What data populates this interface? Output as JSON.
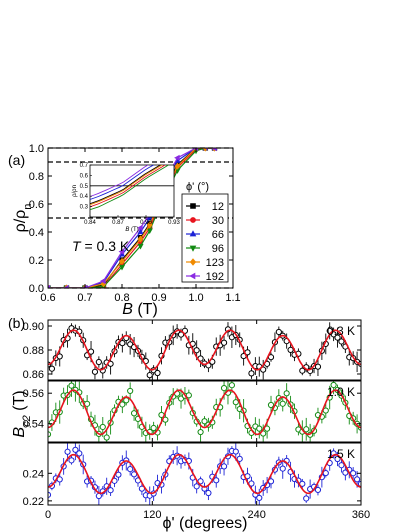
{
  "figure": {
    "panel_a_label": "(a)",
    "panel_b_label": "(b)"
  },
  "chart_data": [
    {
      "panel": "a",
      "type": "line",
      "xlabel": "B (T)",
      "ylabel": "ρ/ρn",
      "xlim": [
        0.6,
        1.1
      ],
      "ylim": [
        0.0,
        1.0
      ],
      "xticks": [
        "0.6",
        "0.7",
        "0.8",
        "0.9",
        "1.0",
        "1.1"
      ],
      "yticks": [
        "0.0",
        "0.2",
        "0.4",
        "0.6",
        "0.8",
        "1.0"
      ],
      "annotation": "T = 0.3 K",
      "reference_lines": [
        1.0,
        0.9,
        0.5,
        0.0
      ],
      "legend_title": "ϕ' (°)",
      "legend_position": "right",
      "x": [
        0.6,
        0.65,
        0.7,
        0.75,
        0.8,
        0.85,
        0.875,
        0.9,
        0.95,
        1.0,
        1.025,
        1.05
      ],
      "series": [
        {
          "name": "12",
          "color": "#000000",
          "marker": "square",
          "y": [
            0.0,
            0.0,
            0.0,
            0.02,
            0.2,
            0.36,
            0.46,
            0.62,
            0.88,
            1.0,
            1.0,
            1.0
          ]
        },
        {
          "name": "30",
          "color": "#e8141e",
          "marker": "circle",
          "y": [
            0.0,
            0.0,
            0.0,
            0.01,
            0.17,
            0.33,
            0.43,
            0.59,
            0.86,
            0.99,
            1.0,
            1.0
          ]
        },
        {
          "name": "66",
          "color": "#1c22d6",
          "marker": "triangle",
          "y": [
            0.0,
            0.0,
            0.0,
            0.04,
            0.24,
            0.4,
            0.5,
            0.66,
            0.91,
            1.0,
            1.0,
            1.0
          ]
        },
        {
          "name": "96",
          "color": "#128a12",
          "marker": "triangle-down",
          "y": [
            0.0,
            0.0,
            0.0,
            0.01,
            0.15,
            0.3,
            0.41,
            0.57,
            0.84,
            0.98,
            1.0,
            1.0
          ]
        },
        {
          "name": "123",
          "color": "#f08a00",
          "marker": "diamond",
          "y": [
            0.0,
            0.0,
            0.0,
            0.03,
            0.19,
            0.35,
            0.45,
            0.61,
            0.87,
            1.0,
            1.0,
            1.0
          ]
        },
        {
          "name": "192",
          "color": "#8a2be2",
          "marker": "triangle-left",
          "y": [
            0.0,
            0.0,
            0.0,
            0.05,
            0.26,
            0.43,
            0.53,
            0.69,
            0.93,
            1.0,
            1.01,
            1.0
          ]
        }
      ],
      "inset": {
        "xlabel": "B (T)",
        "ylabel": "ρ/ρn",
        "xlim": [
          0.84,
          0.93
        ],
        "ylim": [
          0.2,
          0.7
        ],
        "xticks": [
          "0.84",
          "0.87",
          "0.90",
          "0.93"
        ],
        "yticks": [
          "0.3",
          "0.4",
          "0.5",
          "0.6",
          "0.7"
        ],
        "reference_line": 0.5
      }
    },
    {
      "panel": "b",
      "type": "scatter",
      "xlabel": "ϕ' (degrees)",
      "ylabel": "Bc2 (T)",
      "xlim": [
        0,
        360
      ],
      "xticks": [
        "0",
        "120",
        "240",
        "360"
      ],
      "subplots": [
        {
          "label": "0.3 K",
          "color": "#000000",
          "ylim": [
            0.855,
            0.905
          ],
          "yticks": [
            "0.86",
            "0.88",
            "0.90"
          ],
          "fit": {
            "mean": 0.88,
            "amp6": 0.015,
            "amp2": 0.003,
            "phase_deg": 30
          }
        },
        {
          "label": "1.0 K",
          "color": "#128a12",
          "ylim": [
            0.528,
            0.568
          ],
          "yticks": [
            "0.54",
            "0.56"
          ],
          "fit": {
            "mean": 0.5475,
            "amp6": 0.013,
            "amp2": 0.003,
            "phase_deg": 30
          }
        },
        {
          "label": "1.5 K",
          "color": "#1c22d6",
          "ylim": [
            0.217,
            0.262
          ],
          "yticks": [
            "0.22",
            "0.24"
          ],
          "fit": {
            "mean": 0.2395,
            "amp6": 0.0125,
            "amp2": 0.003,
            "phase_deg": 30
          }
        }
      ],
      "fit_color": "#e8141e"
    }
  ]
}
